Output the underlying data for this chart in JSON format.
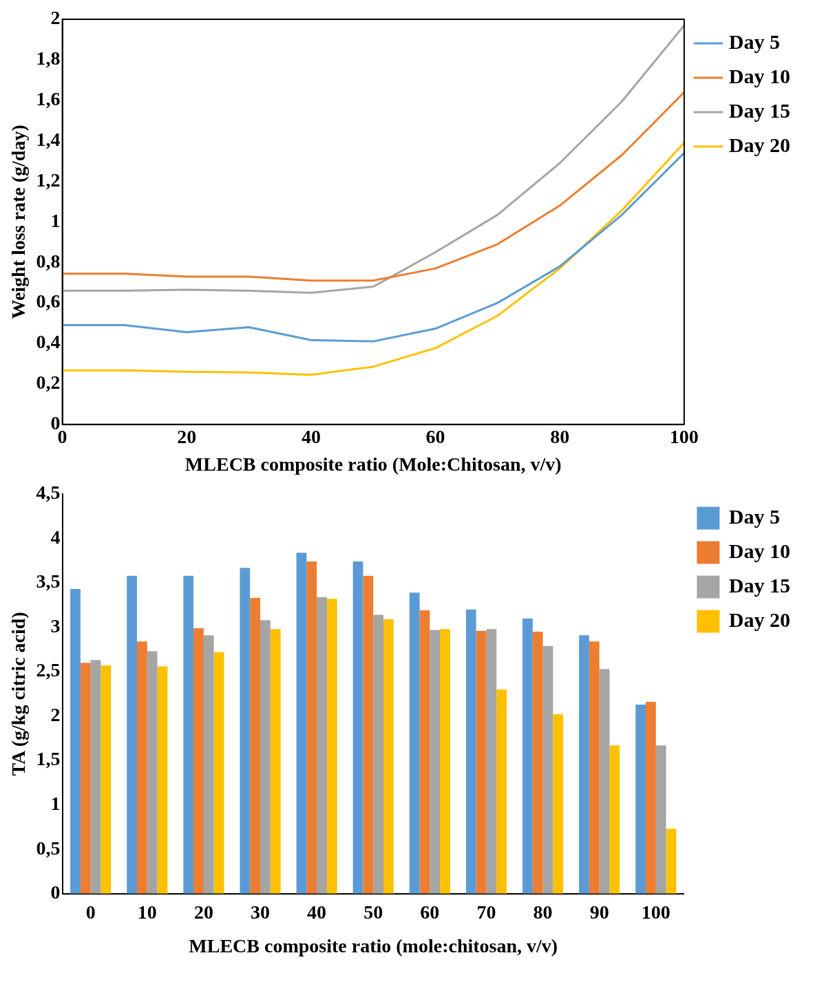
{
  "chart_data": [
    {
      "type": "line",
      "ylabel": "Weight loss rate (g/day)",
      "xlabel": "MLECB composite ratio (Mole:Chitosan, v/v)",
      "x": [
        0,
        10,
        20,
        30,
        40,
        50,
        60,
        70,
        80,
        90,
        100
      ],
      "xlim": [
        0,
        100
      ],
      "xticks": [
        0,
        20,
        40,
        60,
        80,
        100
      ],
      "ylim": [
        0,
        2
      ],
      "yticks": [
        0,
        {
          "value": 0.2,
          "label": "0,2"
        },
        {
          "value": 0.4,
          "label": "0,4"
        },
        {
          "value": 0.6,
          "label": "0,6"
        },
        {
          "value": 0.8,
          "label": "0,8"
        },
        1,
        {
          "value": 1.2,
          "label": "1,2"
        },
        {
          "value": 1.4,
          "label": "1,4"
        },
        {
          "value": 1.6,
          "label": "1,6"
        },
        {
          "value": 1.8,
          "label": "1,8"
        },
        2
      ],
      "grid": false,
      "legend": "right",
      "marker": "none",
      "series": [
        {
          "name": "Day 5",
          "color": "#5b9bd5",
          "values": [
            0.49,
            0.49,
            0.455,
            0.48,
            0.416,
            0.41,
            0.473,
            0.6,
            0.78,
            1.035,
            1.34
          ]
        },
        {
          "name": "Day 10",
          "color": "#ed7d31",
          "values": [
            0.744,
            0.744,
            0.73,
            0.73,
            0.71,
            0.71,
            0.77,
            0.89,
            1.08,
            1.33,
            1.64
          ]
        },
        {
          "name": "Day 15",
          "color": "#a5a5a5",
          "values": [
            0.66,
            0.66,
            0.665,
            0.66,
            0.65,
            0.68,
            0.85,
            1.035,
            1.29,
            1.595,
            1.97
          ]
        },
        {
          "name": "Day 20",
          "color": "#ffc000",
          "values": [
            0.267,
            0.267,
            0.26,
            0.257,
            0.245,
            0.285,
            0.377,
            0.537,
            0.77,
            1.057,
            1.39
          ]
        }
      ]
    },
    {
      "type": "bar",
      "ylabel": "TA (g/kg citric acid)",
      "xlabel": "MLECB composite ratio (mole:chitosan, v/v)",
      "categories": [
        "0",
        "10",
        "20",
        "30",
        "40",
        "50",
        "60",
        "70",
        "80",
        "90",
        "100"
      ],
      "ylim": [
        0,
        4.5
      ],
      "yticks": [
        0,
        {
          "value": 0.5,
          "label": "0,5"
        },
        1,
        {
          "value": 1.5,
          "label": "1,5"
        },
        2,
        {
          "value": 2.5,
          "label": "2,5"
        },
        3,
        {
          "value": 3.5,
          "label": "3,5"
        },
        4,
        {
          "value": 4.5,
          "label": "4,5"
        }
      ],
      "grid": false,
      "legend": "right",
      "series": [
        {
          "name": "Day 5",
          "color": "#5b9bd5",
          "values": [
            3.43,
            3.58,
            3.58,
            3.67,
            3.84,
            3.74,
            3.39,
            3.2,
            3.1,
            2.91,
            2.13
          ]
        },
        {
          "name": "Day 10",
          "color": "#ed7d31",
          "values": [
            2.6,
            2.84,
            2.99,
            3.33,
            3.74,
            3.58,
            3.19,
            2.96,
            2.95,
            2.84,
            2.16
          ]
        },
        {
          "name": "Day 15",
          "color": "#a5a5a5",
          "values": [
            2.63,
            2.73,
            2.91,
            3.08,
            3.34,
            3.14,
            2.97,
            2.98,
            2.79,
            2.53,
            1.67
          ]
        },
        {
          "name": "Day 20",
          "color": "#ffc000",
          "values": [
            2.57,
            2.56,
            2.72,
            2.98,
            3.32,
            3.09,
            2.98,
            2.3,
            2.02,
            1.67,
            0.73
          ]
        }
      ]
    }
  ]
}
